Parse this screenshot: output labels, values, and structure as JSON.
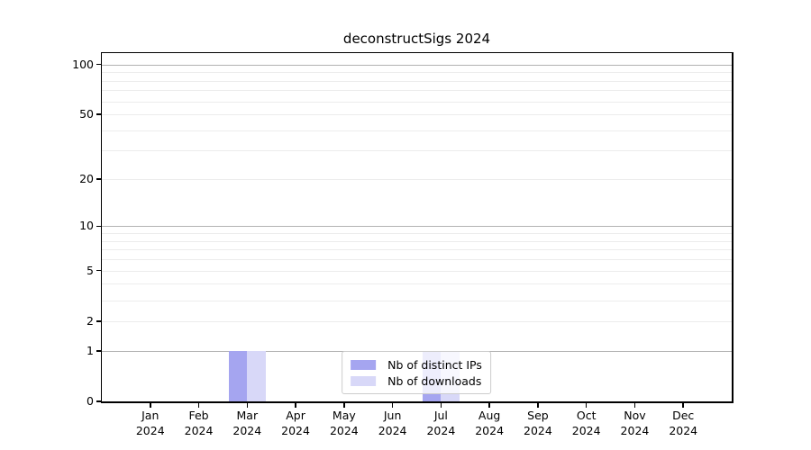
{
  "chart_data": {
    "type": "bar",
    "title": "deconstructSigs 2024",
    "categories": [
      "Jan",
      "Feb",
      "Mar",
      "Apr",
      "May",
      "Jun",
      "Jul",
      "Aug",
      "Sep",
      "Oct",
      "Nov",
      "Dec"
    ],
    "x_tick_year": "2024",
    "series": [
      {
        "name": "Nb of distinct IPs",
        "color": "#a5a5f0",
        "values": [
          0,
          0,
          1,
          0,
          0,
          0,
          1,
          0,
          0,
          0,
          0,
          0
        ]
      },
      {
        "name": "Nb of downloads",
        "color": "#d8d8f8",
        "values": [
          0,
          0,
          1,
          0,
          0,
          0,
          1,
          0,
          0,
          0,
          0,
          0
        ]
      }
    ],
    "yscale": "log1p",
    "ylim": [
      0,
      117
    ],
    "yticks": [
      0,
      1,
      2,
      5,
      10,
      20,
      50,
      100
    ],
    "major_gridlines": [
      1,
      10,
      100
    ],
    "minor_gridlines": [
      2,
      3,
      4,
      5,
      6,
      7,
      8,
      9,
      20,
      30,
      40,
      50,
      60,
      70,
      80,
      90
    ],
    "legend_position": "lower center",
    "colors": {
      "grid_major": "#b2b2b2",
      "grid_minor": "#ececec",
      "axis": "#000000",
      "text": "#000000"
    }
  }
}
